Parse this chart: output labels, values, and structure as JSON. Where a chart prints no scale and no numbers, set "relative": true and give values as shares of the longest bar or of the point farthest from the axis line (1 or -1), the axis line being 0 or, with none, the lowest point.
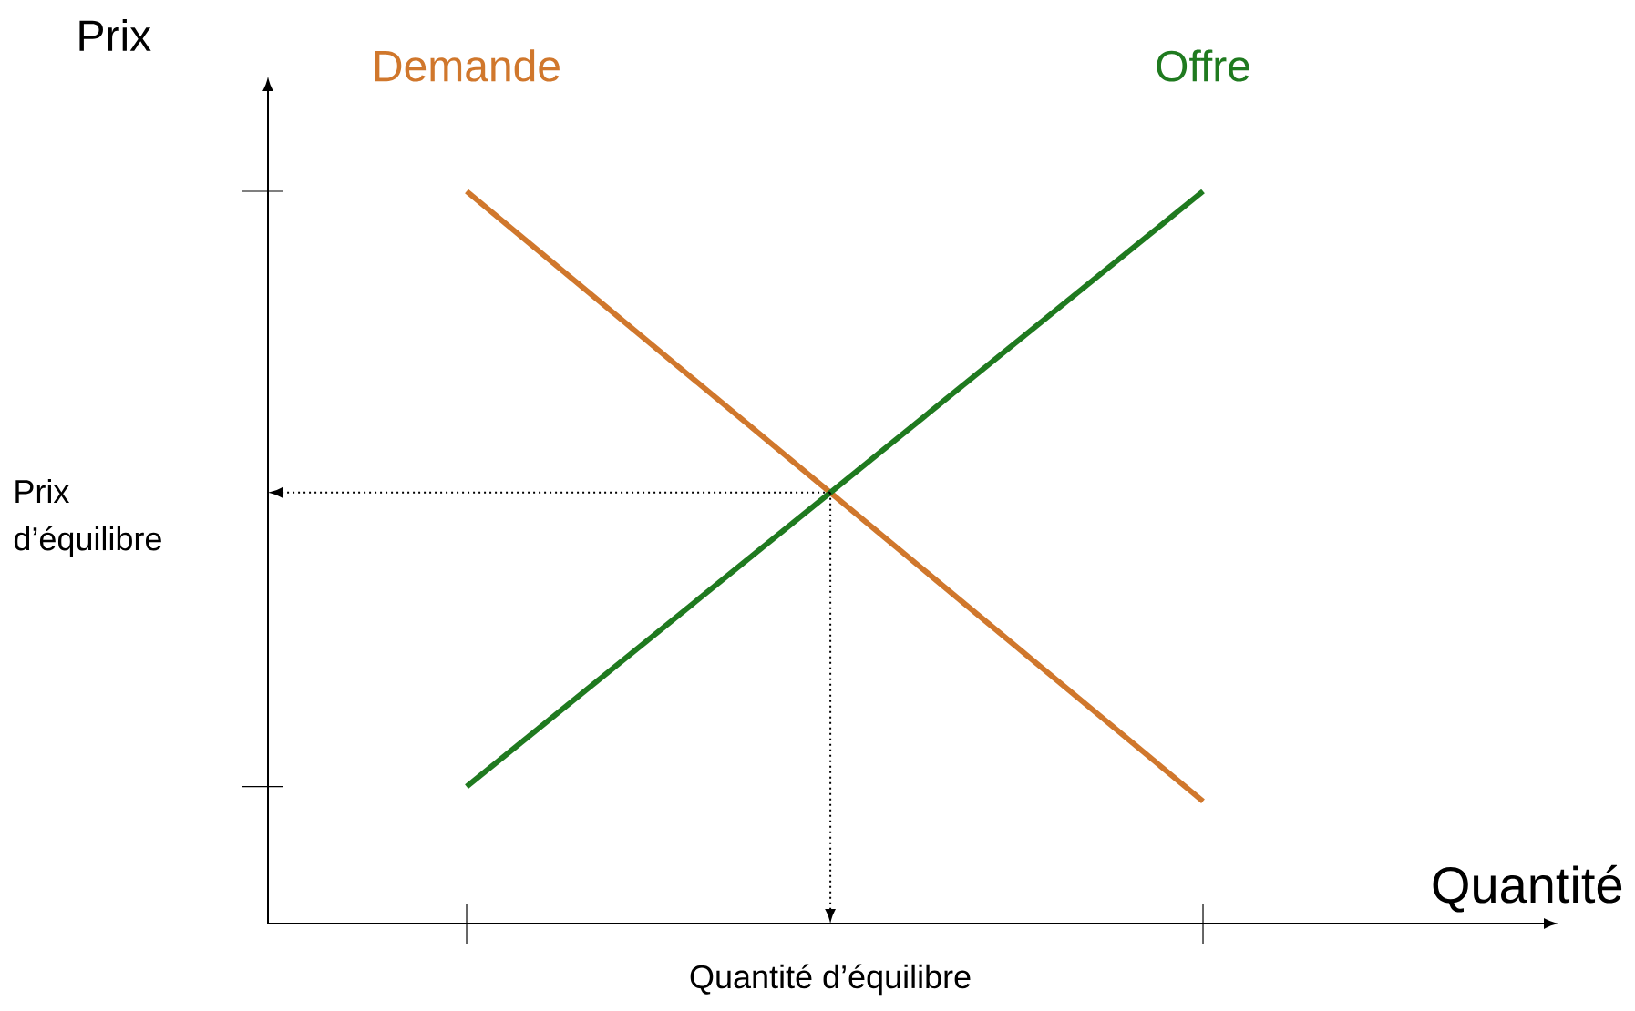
{
  "chart_data": {
    "type": "line",
    "relative": true,
    "xlabel": "Quantité",
    "ylabel": "Prix",
    "categories": [
      null,
      null
    ],
    "series": [
      {
        "name": "Demande",
        "color": "#d0772c",
        "values": [
          1,
          0.167
        ]
      },
      {
        "name": "Offre",
        "color": "#1f7a1f",
        "values": [
          0.187,
          1
        ]
      }
    ],
    "annotations": [
      "Prix d’équilibre",
      "Quantité d’équilibre"
    ],
    "legend": false,
    "grid": false,
    "marker": "none",
    "line_style": "solid"
  }
}
